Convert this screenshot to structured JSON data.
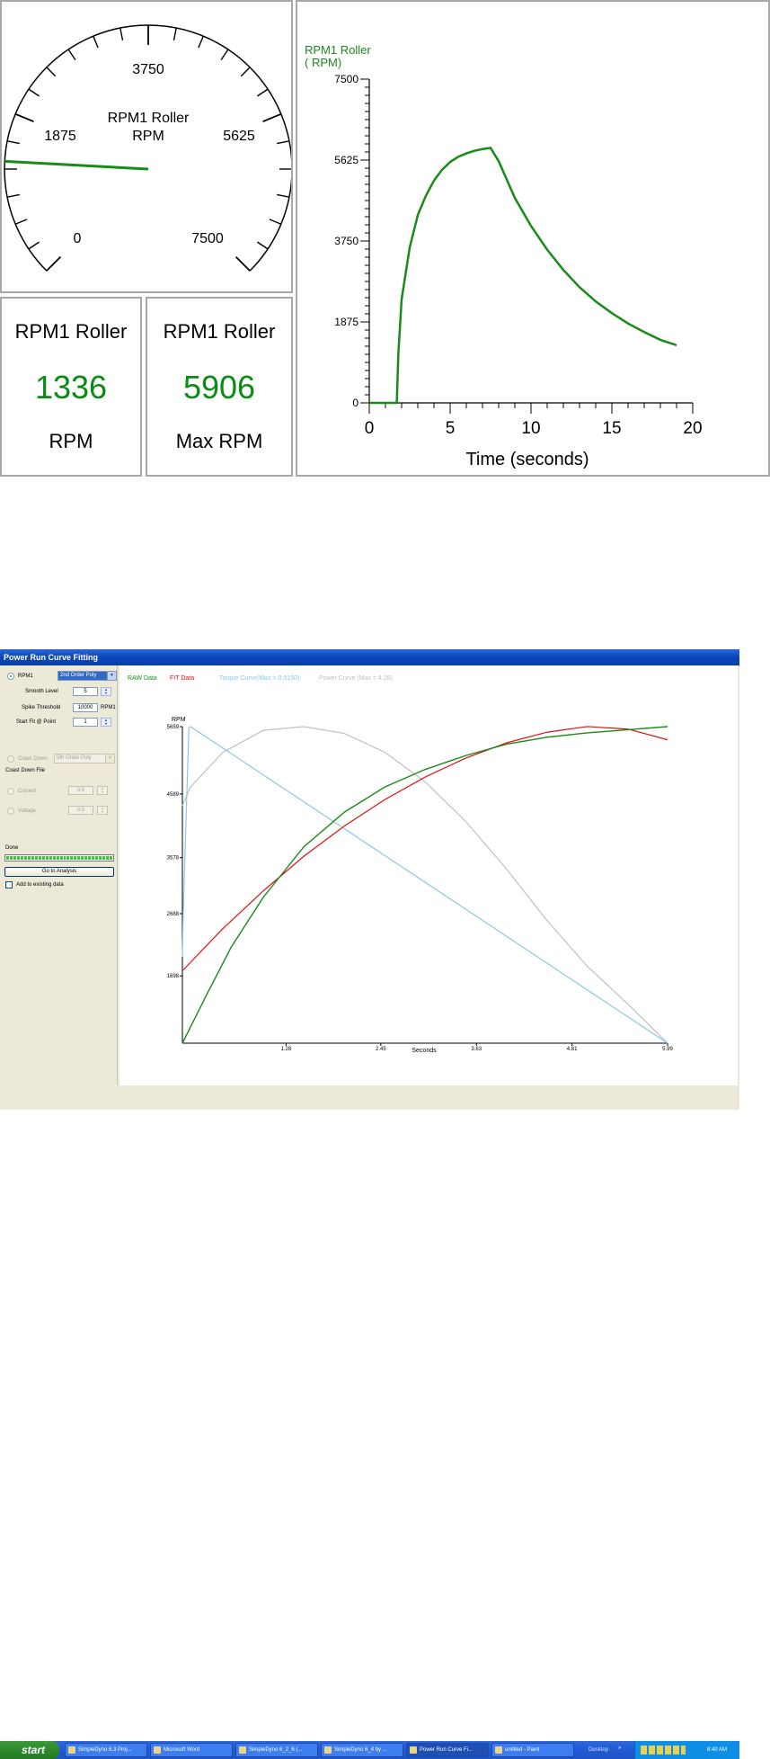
{
  "top": {
    "gauge": {
      "title": "RPM1 Roller",
      "unit": "RPM",
      "ticks": [
        "0",
        "1875",
        "3750",
        "5625",
        "7500"
      ],
      "min": 0,
      "max": 7500,
      "needle_value": 1336
    },
    "readout_current": {
      "title": "RPM1 Roller",
      "value": "1336",
      "unit": "RPM"
    },
    "readout_max": {
      "title": "RPM1 Roller",
      "value": "5906",
      "unit": "Max RPM"
    },
    "line_chart_series_label": "RPM1 Roller",
    "line_chart_series_unit": "( RPM)",
    "colors": {
      "series": "#1a8a1a",
      "border": "#a8a8a8",
      "accent_green": "#0b8a14"
    }
  },
  "window": {
    "title": "Power Run Curve Fitting",
    "controls": {
      "rpm_radio_label": "RPM1",
      "fit_type": "2nd Order Poly",
      "smooth_label": "Smooth Level",
      "smooth_value": "5",
      "spike_label": "Spike Threshold",
      "spike_value": "10000",
      "spike_unit": "RPM1",
      "start_fit_label": "Start Fit @ Point",
      "start_fit_value": "1",
      "coast_label": "Coast Down",
      "coast_fit_type": "5th Order Poly",
      "coast_file_label": "Coast Down File",
      "current_label": "Current",
      "current_value": "0.5",
      "voltage_label": "Voltage",
      "voltage_value": "0.5",
      "status": "Done",
      "analysis_button": "Go to Analysis",
      "add_existing_label": "Add to existing data"
    },
    "legend": {
      "raw": "RAW Data",
      "fit": "FIT Data",
      "torque": "Torque Curve(Max = 0.0150)",
      "power": "Power Curve (Max = 4.28)"
    },
    "colors": {
      "raw": "#1a8a1a",
      "fit": "#e01010",
      "torque": "#8cc8e8",
      "power": "#c0c0c0"
    }
  },
  "taskbar": {
    "start": "start",
    "buttons": [
      "SimpleDyno 6.3 Proj...",
      "Microsoft Word",
      "SimpleDyno 6_2_6 (...",
      "SimpleDyno 6_4 by ...",
      "Power Run Curve Fi...",
      "untitled - Paint"
    ],
    "desktop": "Desktop",
    "clock": "8:40 AM"
  },
  "chart_data": [
    {
      "type": "line",
      "title": "",
      "xlabel": "Time (seconds)",
      "ylabel": "RPM1 Roller ( RPM)",
      "xlim": [
        0,
        20
      ],
      "ylim": [
        0,
        7500
      ],
      "x_ticks": [
        "0",
        "5",
        "10",
        "15",
        "20"
      ],
      "y_ticks": [
        "0",
        "1875",
        "3750",
        "5625",
        "7500"
      ],
      "series": [
        {
          "name": "RPM1 Roller",
          "x": [
            0,
            1.7,
            1.8,
            2.0,
            2.5,
            3.0,
            3.5,
            4.0,
            4.5,
            5.0,
            5.5,
            6.0,
            6.5,
            7.0,
            7.5,
            8.0,
            9.0,
            10.0,
            11.0,
            12.0,
            13.0,
            14.0,
            15.0,
            16.0,
            17.0,
            18.0,
            19.0
          ],
          "y": [
            0,
            0,
            1150,
            2400,
            3600,
            4350,
            4800,
            5150,
            5400,
            5580,
            5700,
            5780,
            5840,
            5880,
            5906,
            5600,
            4750,
            4100,
            3550,
            3080,
            2680,
            2350,
            2080,
            1840,
            1640,
            1460,
            1336
          ]
        }
      ]
    },
    {
      "type": "line",
      "title": "",
      "xlabel": "Seconds",
      "ylabel": "RPM",
      "xlim": [
        0,
        5.99
      ],
      "x_ticks": [
        "1.28",
        "2.45",
        "3.63",
        "4.81",
        "5.99"
      ],
      "y_ticks": [
        "1698",
        "2688",
        "3578",
        "4589",
        "5659"
      ],
      "series": [
        {
          "name": "RAW Data",
          "x": [
            0,
            0.3,
            0.6,
            1.0,
            1.5,
            2.0,
            2.5,
            3.0,
            3.5,
            4.0,
            4.5,
            5.0,
            5.5,
            5.99
          ],
          "y": [
            630,
            1400,
            2150,
            2950,
            3750,
            4300,
            4700,
            4980,
            5200,
            5380,
            5490,
            5560,
            5610,
            5659
          ]
        },
        {
          "name": "FIT Data",
          "x": [
            0,
            0.5,
            1.0,
            1.5,
            2.0,
            2.5,
            3.0,
            3.5,
            4.0,
            4.5,
            5.0,
            5.5,
            5.99
          ],
          "y": [
            1780,
            2450,
            3050,
            3600,
            4080,
            4500,
            4860,
            5160,
            5400,
            5570,
            5660,
            5620,
            5450
          ]
        },
        {
          "name": "Torque Curve(Max = 0.0150)",
          "x": [
            0,
            0.01,
            0.08,
            0.1,
            5.99
          ],
          "y": [
            2000,
            2700,
            5640,
            5659,
            630
          ]
        },
        {
          "name": "Power Curve (Max = 4.28)",
          "x": [
            0,
            0.1,
            0.5,
            1.0,
            1.5,
            2.0,
            2.5,
            3.0,
            3.5,
            4.0,
            4.5,
            5.0,
            5.5,
            5.99
          ],
          "y": [
            4400,
            4700,
            5250,
            5600,
            5659,
            5550,
            5250,
            4780,
            4150,
            3400,
            2580,
            1850,
            1250,
            630
          ]
        }
      ]
    }
  ]
}
